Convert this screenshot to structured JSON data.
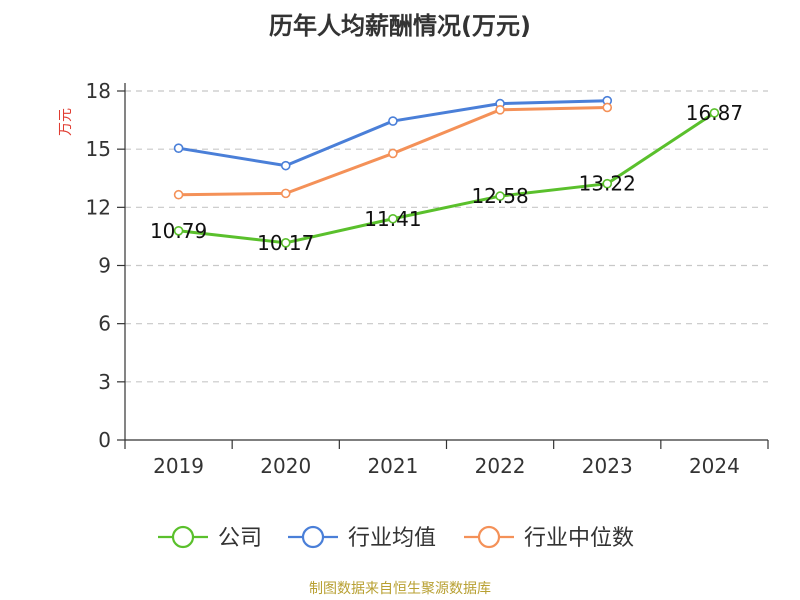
{
  "chart_data": {
    "type": "line",
    "title": "历年人均薪酬情况(万元)",
    "ylabel": "万元",
    "xlabel": "",
    "categories": [
      "2019",
      "2020",
      "2021",
      "2022",
      "2023",
      "2024"
    ],
    "ylim": [
      0,
      18
    ],
    "yticks": [
      0,
      3,
      6,
      9,
      12,
      15,
      18
    ],
    "grid": true,
    "legend_position": "bottom",
    "series": [
      {
        "name": "公司",
        "color": "#5ac02c",
        "values": [
          10.79,
          10.17,
          11.41,
          12.58,
          13.22,
          16.87
        ],
        "labels": [
          "10.79",
          "10.17",
          "11.41",
          "12.58",
          "13.22",
          "16.87"
        ]
      },
      {
        "name": "行业均值",
        "color": "#4a7fd8",
        "values": [
          15.05,
          14.15,
          16.45,
          17.35,
          17.5,
          null
        ]
      },
      {
        "name": "行业中位数",
        "color": "#f49158",
        "values": [
          12.65,
          12.72,
          14.78,
          17.03,
          17.15,
          null
        ]
      }
    ],
    "source": "制图数据来自恒生聚源数据库"
  }
}
